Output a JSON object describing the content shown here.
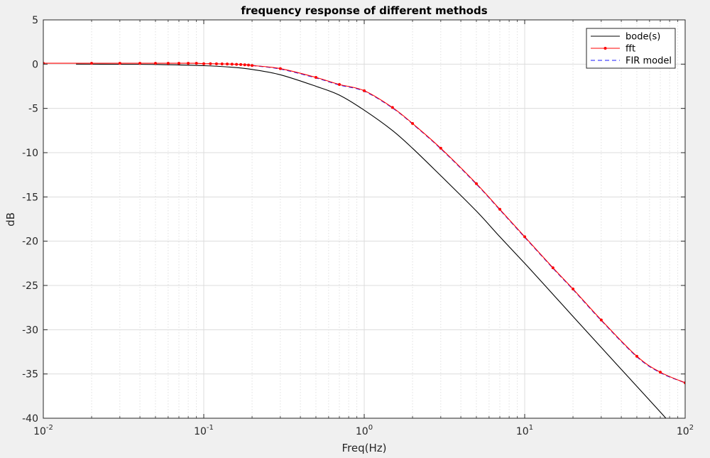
{
  "chart_data": {
    "type": "line",
    "title": "frequency response of different methods",
    "xlabel": "Freq(Hz)",
    "ylabel": "dB",
    "xscale": "log",
    "xlim": [
      0.01,
      100
    ],
    "ylim": [
      -40,
      5
    ],
    "grid": true,
    "minor_grid_x": true,
    "legend_position": "top-right",
    "x_tick_labels": [
      {
        "value": 0.01,
        "base": "10",
        "exp": "-2"
      },
      {
        "value": 0.1,
        "base": "10",
        "exp": "-1"
      },
      {
        "value": 1,
        "base": "10",
        "exp": "0"
      },
      {
        "value": 10,
        "base": "10",
        "exp": "1"
      },
      {
        "value": 100,
        "base": "10",
        "exp": "2"
      }
    ],
    "y_ticks": [
      5,
      0,
      -5,
      -10,
      -15,
      -20,
      -25,
      -30,
      -35,
      -40
    ],
    "y_tick_labels": [
      "5",
      "0",
      "-5",
      "-10",
      "-15",
      "-20",
      "-25",
      "-30",
      "-35",
      "-40"
    ],
    "series": [
      {
        "name": "bode(s)",
        "color": "#000000",
        "style": "solid",
        "marker": "none",
        "x": [
          0.016,
          0.03,
          0.05,
          0.1,
          0.15,
          0.2,
          0.3,
          0.5,
          0.7,
          1,
          1.5,
          2,
          3,
          5,
          7,
          10,
          15,
          20,
          30,
          50,
          70,
          100
        ],
        "y": [
          0,
          -0.01,
          -0.04,
          -0.17,
          -0.35,
          -0.6,
          -1.2,
          -2.5,
          -3.5,
          -5.2,
          -7.5,
          -9.5,
          -12.6,
          -16.6,
          -19.5,
          -22.5,
          -26.0,
          -28.5,
          -32.0,
          -36.4,
          -39.3,
          -42.4
        ]
      },
      {
        "name": "fft",
        "color": "#ff0000",
        "style": "solid",
        "marker": "dot",
        "x": [
          0.01,
          0.02,
          0.03,
          0.04,
          0.05,
          0.06,
          0.07,
          0.08,
          0.09,
          0.1,
          0.11,
          0.12,
          0.13,
          0.14,
          0.15,
          0.16,
          0.17,
          0.18,
          0.19,
          0.2,
          0.3,
          0.5,
          0.7,
          1,
          1.5,
          2,
          3,
          5,
          7,
          10,
          15,
          20,
          30,
          50,
          70,
          100
        ],
        "y": [
          0.1,
          0.1,
          0.1,
          0.1,
          0.1,
          0.1,
          0.1,
          0.1,
          0.1,
          0.05,
          0.05,
          0.04,
          0.03,
          0.02,
          0.0,
          -0.02,
          -0.04,
          -0.07,
          -0.1,
          -0.15,
          -0.5,
          -1.5,
          -2.3,
          -3.0,
          -4.9,
          -6.7,
          -9.5,
          -13.5,
          -16.4,
          -19.5,
          -23.0,
          -25.4,
          -28.9,
          -33.0,
          -34.8,
          -36.0
        ]
      },
      {
        "name": "FIR model",
        "color": "#1a1aff",
        "style": "dashed",
        "marker": "none",
        "x": [
          0.2,
          0.3,
          0.5,
          0.7,
          1,
          1.5,
          2,
          3,
          5,
          7,
          10,
          15,
          20,
          30,
          50,
          70,
          100
        ],
        "y": [
          -0.15,
          -0.55,
          -1.55,
          -2.35,
          -3.05,
          -4.95,
          -6.75,
          -9.55,
          -13.55,
          -16.45,
          -19.55,
          -23.05,
          -25.45,
          -28.95,
          -33.05,
          -34.85,
          -36.0
        ]
      }
    ]
  }
}
